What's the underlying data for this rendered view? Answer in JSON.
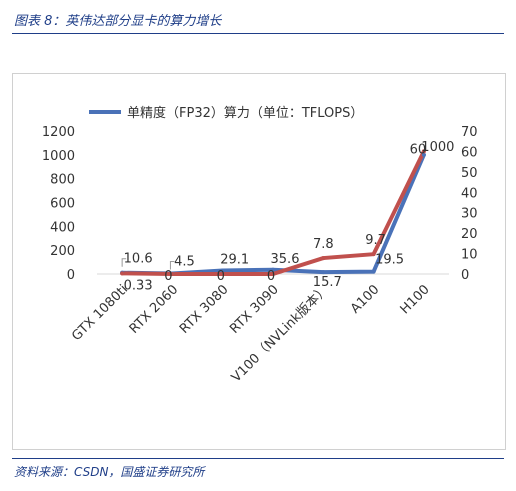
{
  "figure": {
    "title": "图表 8：英伟达部分显卡的算力增长",
    "source": "资料来源：CSDN，国盛证券研究所"
  },
  "colors": {
    "primary_series": "#4a72b8",
    "secondary_series": "#c0504d",
    "title_text": "#1f3e88",
    "rule": "#1f3e88",
    "axis_text": "#333333"
  },
  "chart_data": {
    "type": "line",
    "categories": [
      "GTX 1080ti",
      "RTX 2060",
      "RTX 3080",
      "RTX 3090",
      "V100（NVLink版本）",
      "A100",
      "H100"
    ],
    "series": [
      {
        "name": "单精度（FP32）算力（单位：TFLOPS）",
        "axis": "left",
        "values": [
          10.6,
          4.5,
          29.1,
          35.6,
          15.7,
          19.5,
          1000
        ],
        "labels": [
          "10.6",
          "4.5",
          "29.1",
          "35.6",
          "15.7",
          "19.5",
          "1000"
        ]
      },
      {
        "name": "",
        "axis": "right",
        "values": [
          0.33,
          0,
          0,
          0,
          7.8,
          9.7,
          60
        ],
        "labels": [
          "0.33",
          "0",
          "0",
          "0",
          "7.8",
          "9.7",
          "60"
        ]
      }
    ],
    "y_left": {
      "ylim": [
        0,
        1200
      ],
      "ticks": [
        "0",
        "200",
        "400",
        "600",
        "800",
        "1000",
        "1200"
      ]
    },
    "y_right": {
      "ylim": [
        0,
        70
      ],
      "ticks": [
        "0",
        "10",
        "20",
        "30",
        "40",
        "50",
        "60",
        "70"
      ]
    },
    "legend": {
      "position": "top",
      "entries": [
        "单精度（FP32）算力（单位：TFLOPS）"
      ]
    },
    "grid": false
  }
}
